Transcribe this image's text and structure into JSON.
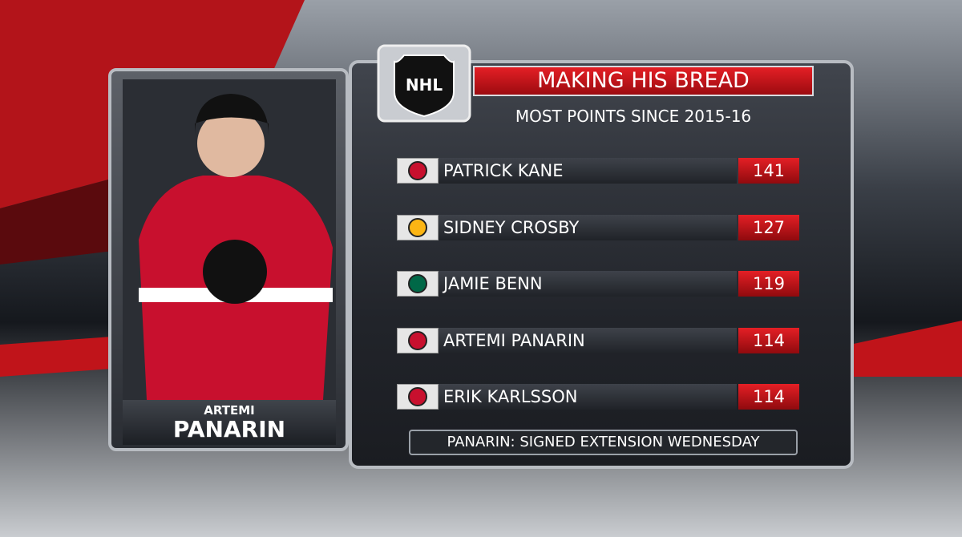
{
  "logo": "NHL",
  "title": "MAKING HIS BREAD",
  "subtitle": "MOST POINTS SINCE 2015-16",
  "player_card": {
    "first_name": "ARTEMI",
    "last_name": "PANARIN"
  },
  "table": {
    "rows": [
      {
        "name": "PATRICK KANE",
        "points": 141,
        "team_color": "#c8102e"
      },
      {
        "name": "SIDNEY CROSBY",
        "points": 127,
        "team_color": "#fcb514"
      },
      {
        "name": "JAMIE BENN",
        "points": 119,
        "team_color": "#006847"
      },
      {
        "name": "ARTEMI PANARIN",
        "points": 114,
        "team_color": "#c8102e"
      },
      {
        "name": "ERIK KARLSSON",
        "points": 114,
        "team_color": "#c8102e"
      }
    ]
  },
  "footer": "PANARIN: SIGNED EXTENSION WEDNESDAY"
}
